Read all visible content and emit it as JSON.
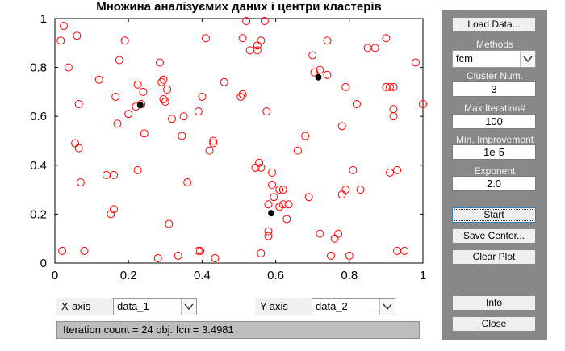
{
  "plot": {
    "title": "Множина аналізуємих даних і центри кластерів"
  },
  "chart_data": {
    "type": "scatter",
    "title": "Множина аналізуємих даних і центри кластерів",
    "xlim": [
      0,
      1
    ],
    "ylim": [
      0,
      1
    ],
    "xticks": [
      "0",
      "0.2",
      "0.4",
      "0.6",
      "0.8",
      "1"
    ],
    "yticks": [
      "0",
      "0.2",
      "0.4",
      "0.6",
      "0.8",
      "1"
    ],
    "grid": false,
    "series": [
      {
        "marker": "open-circle",
        "color": "#ff0000",
        "x": [
          0.02,
          0.024,
          0.016,
          0.08,
          0.06,
          0.065,
          0.07,
          0.037,
          0.055,
          0.065,
          0.12,
          0.152,
          0.17,
          0.16,
          0.14,
          0.16,
          0.165,
          0.175,
          0.19,
          0.2,
          0.225,
          0.24,
          0.225,
          0.243,
          0.235,
          0.22,
          0.285,
          0.295,
          0.305,
          0.295,
          0.318,
          0.28,
          0.345,
          0.35,
          0.36,
          0.39,
          0.4,
          0.41,
          0.42,
          0.43,
          0.435,
          0.46,
          0.395,
          0.39,
          0.335,
          0.31,
          0.3,
          0.29,
          0.43,
          0.52,
          0.51,
          0.53,
          0.55,
          0.55,
          0.57,
          0.56,
          0.575,
          0.58,
          0.58,
          0.56,
          0.61,
          0.62,
          0.62,
          0.63,
          0.635,
          0.61,
          0.59,
          0.595,
          0.51,
          0.505,
          0.56,
          0.545,
          0.555,
          0.58,
          0.59,
          0.68,
          0.66,
          0.69,
          0.72,
          0.74,
          0.74,
          0.7,
          0.705,
          0.72,
          0.79,
          0.82,
          0.78,
          0.78,
          0.79,
          0.81,
          0.77,
          0.8,
          0.75,
          0.76,
          0.83,
          0.9,
          0.85,
          0.87,
          0.9,
          0.91,
          0.92,
          0.92,
          0.93,
          0.98,
          1.0,
          0.91,
          0.92,
          0.93,
          0.95
        ],
        "y": [
          0.05,
          0.97,
          0.91,
          0.05,
          0.93,
          0.47,
          0.33,
          0.8,
          0.49,
          0.65,
          0.75,
          0.2,
          0.57,
          0.36,
          0.36,
          0.22,
          0.68,
          0.83,
          0.91,
          0.61,
          0.73,
          0.7,
          0.38,
          0.53,
          0.65,
          0.64,
          0.82,
          0.75,
          0.71,
          0.67,
          0.59,
          0.02,
          0.52,
          0.6,
          0.33,
          0.62,
          0.68,
          0.92,
          0.46,
          0.5,
          0.02,
          0.74,
          0.05,
          0.05,
          0.03,
          0.16,
          0.66,
          0.74,
          0.49,
          0.99,
          0.92,
          0.87,
          0.89,
          0.87,
          0.99,
          0.91,
          0.62,
          0.11,
          0.13,
          0.04,
          0.23,
          0.3,
          0.24,
          0.18,
          0.24,
          0.3,
          0.32,
          0.27,
          0.69,
          0.68,
          0.39,
          0.39,
          0.41,
          0.24,
          0.37,
          0.52,
          0.46,
          0.27,
          0.79,
          0.77,
          0.91,
          0.85,
          0.78,
          0.12,
          0.72,
          0.65,
          0.56,
          0.28,
          0.3,
          0.38,
          0.12,
          0.03,
          0.03,
          0.1,
          0.3,
          0.92,
          0.88,
          0.88,
          0.72,
          0.72,
          0.63,
          0.6,
          0.38,
          0.82,
          0.65,
          0.37,
          0.72,
          0.05,
          0.05
        ]
      },
      {
        "marker": "filled-dot",
        "color": "#000000",
        "x": [
          0.232,
          0.716,
          0.588
        ],
        "y": [
          0.646,
          0.76,
          0.204
        ]
      }
    ]
  },
  "panel": {
    "load_button": "Load Data...",
    "methods_label": "Methods",
    "method_value": "fcm",
    "cluster_label": "Cluster Num.",
    "cluster_value": "3",
    "maxiter_label": "Max Iteration#",
    "maxiter_value": "100",
    "minimp_label": "Min. Improvement",
    "minimp_value": "1e-5",
    "exponent_label": "Exponent",
    "exponent_value": "2.0",
    "start_button": "Start",
    "save_button": "Save Center...",
    "clear_button": "Clear Plot",
    "info_button": "Info",
    "close_button": "Close"
  },
  "axes_select": {
    "x_label": "X-axis",
    "x_value": "data_1",
    "y_label": "Y-axis",
    "y_value": "data_2"
  },
  "status": {
    "text": "Iteration count = 24 obj. fcn = 3.4981"
  }
}
